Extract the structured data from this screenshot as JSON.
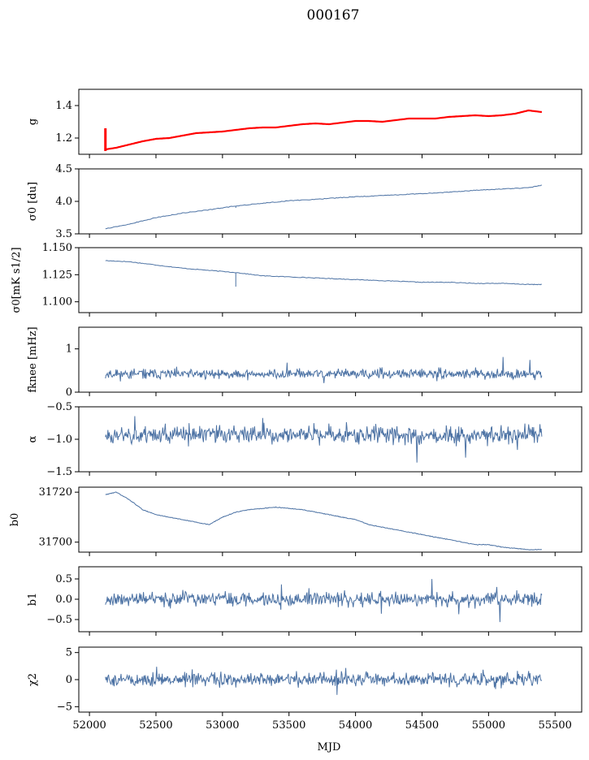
{
  "figure": {
    "title": "000167",
    "xlabel": "MJD"
  },
  "chart_data": {
    "type": "line",
    "title": "000167",
    "xlabel": "MJD",
    "xlim": [
      51920,
      55700
    ],
    "xticks": [
      52000,
      52500,
      53000,
      53500,
      54000,
      54500,
      55000,
      55500
    ],
    "data_x_range": [
      52120,
      55400
    ],
    "series_color": "#4c72a4",
    "model_color": "#ff0000",
    "panels": [
      {
        "id": "g",
        "ylabel": "g",
        "ylim": [
          1.1,
          1.5
        ],
        "yticks": [
          1.2,
          1.4
        ],
        "ytick_labels": [
          "1.2",
          "1.4"
        ],
        "series": [
          {
            "role": "data",
            "x": [
              52120,
              52200,
              52300,
              52400,
              52500,
              52600,
              52700,
              52800,
              52900,
              53000,
              53100,
              53200,
              53300,
              53400,
              53500,
              53600,
              53700,
              53800,
              53900,
              54000,
              54100,
              54200,
              54300,
              54400,
              54500,
              54600,
              54700,
              54800,
              54900,
              55000,
              55100,
              55200,
              55300,
              55400
            ],
            "values": [
              1.13,
              1.14,
              1.16,
              1.18,
              1.195,
              1.2,
              1.215,
              1.23,
              1.235,
              1.24,
              1.25,
              1.26,
              1.265,
              1.265,
              1.275,
              1.285,
              1.29,
              1.285,
              1.295,
              1.305,
              1.305,
              1.3,
              1.31,
              1.32,
              1.32,
              1.32,
              1.33,
              1.335,
              1.34,
              1.335,
              1.34,
              1.35,
              1.37,
              1.36
            ]
          },
          {
            "role": "model",
            "x": [
              52120,
              52200,
              52300,
              52400,
              52500,
              52600,
              52700,
              52800,
              52900,
              53000,
              53100,
              53200,
              53300,
              53400,
              53500,
              53600,
              53700,
              53800,
              53900,
              54000,
              54100,
              54200,
              54300,
              54400,
              54500,
              54600,
              54700,
              54800,
              54900,
              55000,
              55100,
              55200,
              55300,
              55400
            ],
            "values": [
              1.13,
              1.14,
              1.16,
              1.18,
              1.195,
              1.2,
              1.215,
              1.23,
              1.235,
              1.24,
              1.25,
              1.26,
              1.265,
              1.265,
              1.275,
              1.285,
              1.29,
              1.285,
              1.295,
              1.305,
              1.305,
              1.3,
              1.31,
              1.32,
              1.32,
              1.32,
              1.33,
              1.335,
              1.34,
              1.335,
              1.34,
              1.35,
              1.37,
              1.36
            ]
          }
        ],
        "initial_spike": {
          "x": 52120,
          "from": 1.12,
          "to": 1.26
        }
      },
      {
        "id": "sigma0_du",
        "ylabel": "σ0 [du]",
        "ylim": [
          3.5,
          4.5
        ],
        "yticks": [
          3.5,
          4.0,
          4.5
        ],
        "ytick_labels": [
          "3.5",
          "4.0",
          "4.5"
        ],
        "series": [
          {
            "role": "data",
            "x": [
              52120,
              52300,
              52500,
              52700,
              52900,
              53100,
              53300,
              53500,
              53700,
              53900,
              54100,
              54300,
              54500,
              54700,
              54900,
              55100,
              55300,
              55400
            ],
            "values": [
              3.58,
              3.65,
              3.75,
              3.82,
              3.87,
              3.93,
              3.97,
              4.01,
              4.03,
              4.06,
              4.08,
              4.1,
              4.12,
              4.14,
              4.17,
              4.19,
              4.21,
              4.25
            ]
          }
        ],
        "dip": {
          "x": 53100,
          "value": 3.9
        }
      },
      {
        "id": "sigma0_mks",
        "ylabel": "σ0[mK s1/2]",
        "ylim": [
          1.09,
          1.15
        ],
        "yticks": [
          1.1,
          1.125,
          1.15
        ],
        "ytick_labels": [
          "1.100",
          "1.125",
          "1.150"
        ],
        "series": [
          {
            "role": "data",
            "x": [
              52120,
              52300,
              52500,
              52700,
              52900,
              53100,
              53300,
              53500,
              53700,
              53900,
              54100,
              54300,
              54500,
              54700,
              54900,
              55100,
              55300,
              55400
            ],
            "values": [
              1.138,
              1.137,
              1.134,
              1.131,
              1.129,
              1.127,
              1.124,
              1.123,
              1.122,
              1.121,
              1.12,
              1.119,
              1.118,
              1.118,
              1.117,
              1.117,
              1.116,
              1.116
            ]
          }
        ],
        "dip": {
          "x": 53100,
          "value": 1.114
        }
      },
      {
        "id": "fknee",
        "ylabel": "fknee [mHz]",
        "ylim": [
          0,
          1.5
        ],
        "yticks": [
          0,
          1
        ],
        "ytick_labels": [
          "0",
          "1"
        ],
        "series": [
          {
            "role": "data",
            "noise": {
              "mean": 0.42,
              "sigma": 0.08,
              "spike_scale": 0.35,
              "seed": 11
            }
          }
        ]
      },
      {
        "id": "alpha",
        "ylabel": "α",
        "ylim": [
          -1.5,
          -0.5
        ],
        "yticks": [
          -1.5,
          -1.0,
          -0.5
        ],
        "ytick_labels": [
          "−1.5",
          "−1.0",
          "−0.5"
        ],
        "series": [
          {
            "role": "data",
            "noise": {
              "mean": -0.93,
              "sigma": 0.1,
              "spike_scale": 0.4,
              "seed": 23
            }
          }
        ]
      },
      {
        "id": "b0",
        "ylabel": "b0",
        "ylim": [
          31696,
          31722
        ],
        "yticks": [
          31700,
          31720
        ],
        "ytick_labels": [
          "31700",
          "31720"
        ],
        "series": [
          {
            "role": "data",
            "x": [
              52120,
              52200,
              52300,
              52400,
              52500,
              52600,
              52700,
              52800,
              52900,
              53000,
              53100,
              53200,
              53300,
              53400,
              53500,
              53600,
              53700,
              53800,
              53900,
              54000,
              54100,
              54200,
              54300,
              54400,
              54500,
              54600,
              54700,
              54800,
              54900,
              55000,
              55100,
              55200,
              55300,
              55400
            ],
            "values": [
              31719,
              31720,
              31717,
              31713,
              31711,
              31710,
              31709,
              31708,
              31707,
              31710,
              31712,
              31713,
              31713.5,
              31714,
              31713.5,
              31713,
              31712,
              31711,
              31710,
              31709,
              31707,
              31706,
              31705,
              31704,
              31703,
              31702,
              31701,
              31700,
              31699,
              31699,
              31698,
              31697.5,
              31697,
              31697
            ]
          }
        ]
      },
      {
        "id": "b1",
        "ylabel": "b1",
        "ylim": [
          -0.8,
          0.8
        ],
        "yticks": [
          -0.5,
          0.0,
          0.5
        ],
        "ytick_labels": [
          "−0.5",
          "0.0",
          "0.5"
        ],
        "series": [
          {
            "role": "data",
            "noise": {
              "mean": 0.0,
              "sigma": 0.12,
              "spike_scale": 0.6,
              "seed": 37
            }
          }
        ]
      },
      {
        "id": "chi2",
        "ylabel": "χ2",
        "ylim": [
          -6,
          6
        ],
        "yticks": [
          -5,
          0,
          5
        ],
        "ytick_labels": [
          "−5",
          "0",
          "5"
        ],
        "series": [
          {
            "role": "data",
            "noise": {
              "mean": 0.0,
              "sigma": 0.9,
              "spike_scale": 2.2,
              "seed": 51
            }
          }
        ]
      }
    ]
  }
}
